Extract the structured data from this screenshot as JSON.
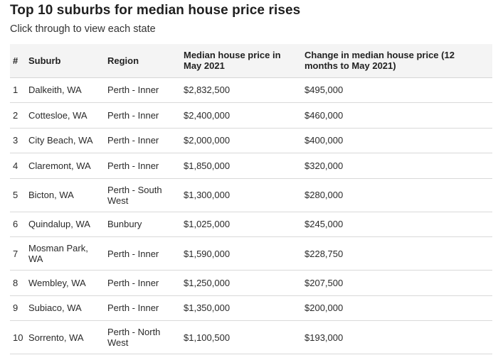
{
  "title": "Top 10 suburbs for median house price rises",
  "subtitle": "Click through to view each state",
  "table": {
    "headers": [
      "#",
      "Suburb",
      "Region",
      "Median house price in May 2021",
      "Change in median house price (12 months to May 2021)"
    ],
    "rows": [
      [
        "1",
        "Dalkeith, WA",
        "Perth - Inner",
        "$2,832,500",
        "$495,000"
      ],
      [
        "2",
        "Cottesloe, WA",
        "Perth - Inner",
        "$2,400,000",
        "$460,000"
      ],
      [
        "3",
        "City Beach, WA",
        "Perth - Inner",
        "$2,000,000",
        "$400,000"
      ],
      [
        "4",
        "Claremont, WA",
        "Perth - Inner",
        "$1,850,000",
        "$320,000"
      ],
      [
        "5",
        "Bicton, WA",
        "Perth - South West",
        "$1,300,000",
        "$280,000"
      ],
      [
        "6",
        "Quindalup, WA",
        "Bunbury",
        "$1,025,000",
        "$245,000"
      ],
      [
        "7",
        "Mosman Park, WA",
        "Perth - Inner",
        "$1,590,000",
        "$228,750"
      ],
      [
        "8",
        "Wembley, WA",
        "Perth - Inner",
        "$1,250,000",
        "$207,500"
      ],
      [
        "9",
        "Subiaco, WA",
        "Perth - Inner",
        "$1,350,000",
        "$200,000"
      ],
      [
        "10",
        "Sorrento, WA",
        "Perth - North West",
        "$1,100,500",
        "$193,000"
      ]
    ]
  }
}
